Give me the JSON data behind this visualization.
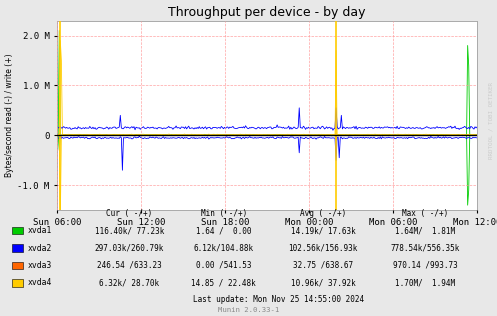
{
  "title": "Throughput per device - by day",
  "ylabel": "Bytes/second read (-) / write (+)",
  "background_color": "#e8e8e8",
  "plot_bg_color": "#ffffff",
  "grid_color": "#ff9999",
  "ylim": [
    -1500000,
    2300000
  ],
  "yticks": [
    -1000000,
    0,
    1000000,
    2000000
  ],
  "ytick_labels": [
    "-1.0 M",
    "0",
    "1.0 M",
    "2.0 M"
  ],
  "xtick_labels": [
    "Sun 06:00",
    "Sun 12:00",
    "Sun 18:00",
    "Mon 00:00",
    "Mon 06:00",
    "Mon 12:00"
  ],
  "devices": [
    "xvda1",
    "xvda2",
    "xvda3",
    "xvda4"
  ],
  "device_colors": [
    "#00cc00",
    "#0000ff",
    "#ff6600",
    "#ffcc00"
  ],
  "legend_rows": [
    [
      "xvda1",
      "116.40k/ 77.23k",
      "1.64 /  0.00",
      "14.19k/ 17.63k",
      "1.64M/  1.81M"
    ],
    [
      "xvda2",
      "297.03k/260.79k",
      "6.12k/104.88k",
      "102.56k/156.93k",
      "778.54k/556.35k"
    ],
    [
      "xvda3",
      "246.54 /633.23",
      "0.00 /541.53",
      "32.75 /638.67",
      "970.14 /993.73"
    ],
    [
      "xvda4",
      "6.32k/ 28.70k",
      "14.85 / 22.48k",
      "10.96k/ 37.92k",
      "1.70M/  1.94M"
    ]
  ],
  "last_update": "Last update: Mon Nov 25 14:55:00 2024",
  "munin_version": "Munin 2.0.33-1",
  "watermark": "RRDTOOL / TOBI OETIKER"
}
